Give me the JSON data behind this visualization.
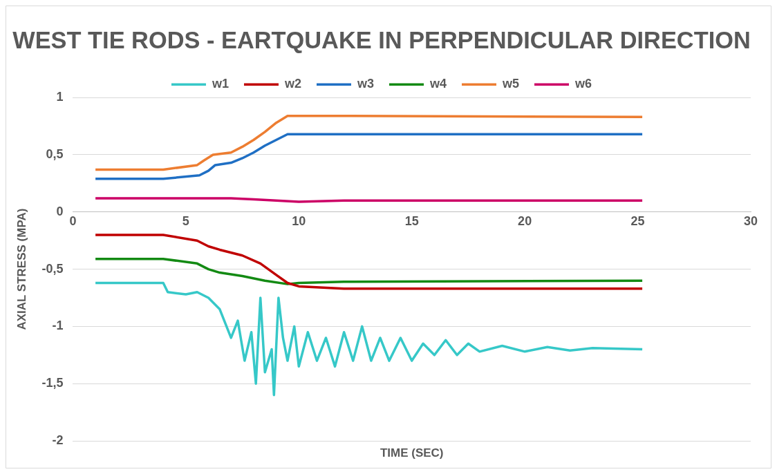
{
  "chart_data": {
    "type": "line",
    "title": "WEST TIE RODS - EARTQUAKE IN PERPENDICULAR DIRECTION",
    "xlabel": "TIME (SEC)",
    "ylabel": "AXIAL STRESS (MPA)",
    "xlim": [
      0,
      30
    ],
    "xticks": [
      0,
      5,
      10,
      15,
      20,
      25,
      30
    ],
    "ylim": [
      -2,
      1
    ],
    "yticks": [
      {
        "value": -2,
        "label": "-2"
      },
      {
        "value": -1.5,
        "label": "-1,5"
      },
      {
        "value": -1,
        "label": "-1"
      },
      {
        "value": -0.5,
        "label": "-0,5"
      },
      {
        "value": 0,
        "label": "0"
      },
      {
        "value": 0.5,
        "label": "0,5"
      },
      {
        "value": 1,
        "label": "1"
      }
    ],
    "grid": "y",
    "legend": "top",
    "marker": "none",
    "line_style": "solid",
    "series": [
      {
        "name": "w1",
        "color": "#36c8c8",
        "x": [
          1,
          4,
          4.2,
          5,
          5.5,
          6,
          6.5,
          7,
          7.3,
          7.6,
          7.9,
          8.1,
          8.3,
          8.5,
          8.8,
          8.9,
          9.1,
          9.3,
          9.5,
          9.8,
          10,
          10.4,
          10.8,
          11.2,
          11.6,
          12,
          12.4,
          12.8,
          13.2,
          13.6,
          14,
          14.5,
          15,
          15.5,
          16,
          16.5,
          17,
          17.5,
          18,
          19,
          20,
          21,
          22,
          23,
          25.2
        ],
        "values": [
          -0.62,
          -0.62,
          -0.7,
          -0.72,
          -0.7,
          -0.75,
          -0.85,
          -1.1,
          -0.95,
          -1.3,
          -1.05,
          -1.5,
          -0.75,
          -1.4,
          -1.2,
          -1.6,
          -0.75,
          -1.1,
          -1.3,
          -1,
          -1.35,
          -1.05,
          -1.3,
          -1.1,
          -1.35,
          -1.05,
          -1.3,
          -1,
          -1.3,
          -1.1,
          -1.3,
          -1.1,
          -1.3,
          -1.15,
          -1.25,
          -1.12,
          -1.25,
          -1.15,
          -1.22,
          -1.17,
          -1.22,
          -1.18,
          -1.21,
          -1.19,
          -1.2
        ]
      },
      {
        "name": "w2",
        "color": "#c00000",
        "x": [
          1,
          4,
          5.5,
          6,
          6.5,
          7.5,
          8.3,
          9,
          9.5,
          10,
          12,
          25.2
        ],
        "values": [
          -0.2,
          -0.2,
          -0.25,
          -0.3,
          -0.33,
          -0.38,
          -0.45,
          -0.55,
          -0.62,
          -0.65,
          -0.67,
          -0.67
        ]
      },
      {
        "name": "w3",
        "color": "#1f6fc4",
        "x": [
          1,
          4,
          5.6,
          6,
          6.3,
          7,
          7.5,
          8,
          8.5,
          9,
          9.5,
          25.2
        ],
        "values": [
          0.29,
          0.29,
          0.32,
          0.36,
          0.41,
          0.43,
          0.47,
          0.52,
          0.58,
          0.63,
          0.68,
          0.68
        ]
      },
      {
        "name": "w4",
        "color": "#138a13",
        "x": [
          1,
          4,
          5.5,
          6,
          6.5,
          7.5,
          8.5,
          9.5,
          10,
          12,
          25.2
        ],
        "values": [
          -0.41,
          -0.41,
          -0.45,
          -0.5,
          -0.53,
          -0.56,
          -0.6,
          -0.63,
          -0.62,
          -0.61,
          -0.6
        ]
      },
      {
        "name": "w5",
        "color": "#ed7d31",
        "x": [
          1,
          4,
          5.5,
          5.8,
          6.2,
          7,
          7.5,
          8,
          8.5,
          9,
          9.5,
          12,
          25.2
        ],
        "values": [
          0.37,
          0.37,
          0.41,
          0.45,
          0.5,
          0.52,
          0.57,
          0.63,
          0.7,
          0.78,
          0.84,
          0.84,
          0.83
        ]
      },
      {
        "name": "w6",
        "color": "#cc0066",
        "x": [
          1,
          6,
          7,
          8,
          9,
          10,
          12,
          25.2
        ],
        "values": [
          0.12,
          0.12,
          0.12,
          0.11,
          0.1,
          0.09,
          0.1,
          0.1
        ]
      }
    ]
  }
}
